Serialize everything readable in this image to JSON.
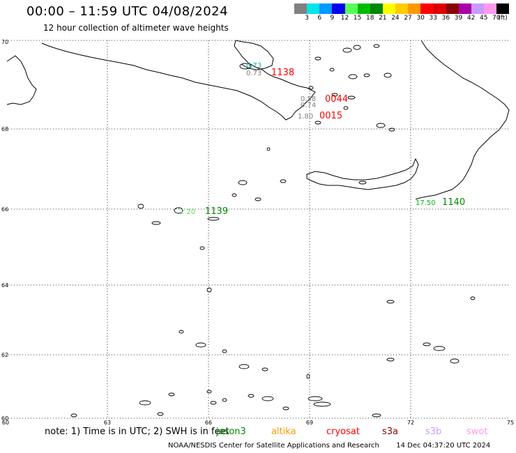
{
  "header": {
    "title": "00:00 – 11:59 UTC 04/08/2024",
    "subtitle": "12 hour collection of altimeter wave heights"
  },
  "legend": {
    "unit": "(ft)",
    "colors": [
      "#808080",
      "#00e5e5",
      "#0099ff",
      "#0000ee",
      "#55ff55",
      "#00bb00",
      "#008800",
      "#ffff00",
      "#ffcc00",
      "#ff9900",
      "#ff0000",
      "#dd0000",
      "#880000",
      "#aa00aa",
      "#cc99ff",
      "#ff99ee",
      "#000000"
    ],
    "labels": [
      "3",
      "6",
      "9",
      "12",
      "15",
      "18",
      "21",
      "24",
      "27",
      "30",
      "33",
      "36",
      "39",
      "42",
      "45",
      "70"
    ]
  },
  "axes": {
    "lon_labels": [
      "60",
      "63",
      "66",
      "69",
      "72",
      "75"
    ],
    "lat_labels": [
      "70",
      "68",
      "66",
      "64",
      "62",
      "60"
    ],
    "lat_bottom_label": "60"
  },
  "observations": [
    {
      "time": "1138",
      "color": "#ff0000",
      "swh": [
        "0.73",
        "0.73"
      ],
      "swh_color": [
        "#00b0b0",
        "#808080"
      ]
    },
    {
      "time": "0044",
      "color": "#ff0000",
      "swh": [
        "0.58",
        "0.74"
      ],
      "swh_color": [
        "#808080",
        "#808080"
      ]
    },
    {
      "time": "0015",
      "color": "#ff0000",
      "swh": [
        "1.80"
      ],
      "swh_color": [
        "#808080"
      ]
    },
    {
      "time": "1139",
      "color": "#008800",
      "swh": [
        "2.20"
      ],
      "swh_color": [
        "#55dd55"
      ]
    },
    {
      "time": "1140",
      "color": "#008800",
      "swh": [
        "17.50"
      ],
      "swh_color": [
        "#00bb00"
      ]
    }
  ],
  "note": {
    "prefix": "note: 1) Time is in UTC; 2) SWH is in feet",
    "satellites": [
      {
        "name": "jason3",
        "color": "#008800"
      },
      {
        "name": "altika",
        "color": "#ff9900"
      },
      {
        "name": "cryosat",
        "color": "#ff0000"
      },
      {
        "name": "s3a",
        "color": "#880000"
      },
      {
        "name": "s3b",
        "color": "#cc99ff"
      },
      {
        "name": "swot",
        "color": "#ff99ee"
      }
    ]
  },
  "footer": {
    "credit": "NOAA/NESDIS Center for Satellite Applications and Research",
    "timestamp": "14 Dec 04:37:20 UTC 2024"
  }
}
